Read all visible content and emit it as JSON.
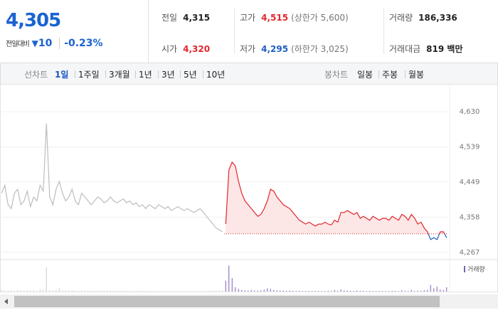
{
  "quote": {
    "price": "4,305",
    "change_label": "전일대비",
    "change": "10",
    "change_rate": "-0.23%"
  },
  "info": [
    [
      {
        "label": "전일",
        "value": "4,315"
      },
      {
        "label": "고가",
        "value": "4,515",
        "note": "(상한가 5,600)"
      },
      {
        "label": "거래량",
        "value": "186,336"
      }
    ],
    [
      {
        "label": "시가",
        "value": "4,320"
      },
      {
        "label": "저가",
        "value": "4,295",
        "note": "(하한가 3,025)"
      },
      {
        "label": "거래대금",
        "value": "819 백만"
      }
    ]
  ],
  "tabs": {
    "line_label": "선차트",
    "line": [
      "1일",
      "1주일",
      "3개월",
      "1년",
      "3년",
      "5년",
      "10년"
    ],
    "candle_label": "봉차트",
    "candle": [
      "일봉",
      "주봉",
      "월봉"
    ]
  },
  "chart_data": [
    {
      "type": "line",
      "grid": true,
      "baseline": 4315,
      "ylim": [
        4254,
        4689
      ],
      "yticks": [
        {
          "value": 4630,
          "label": "4,630"
        },
        {
          "value": 4539,
          "label": "4,539"
        },
        {
          "value": 4449,
          "label": "4,449"
        },
        {
          "value": 4358,
          "label": "4,358"
        },
        {
          "value": 4267,
          "label": "4,267"
        }
      ],
      "series": [
        {
          "color": "#bdbdbd",
          "values": [
            4420,
            4440,
            4390,
            4380,
            4420,
            4430,
            4390,
            4400,
            4425,
            4385,
            4410,
            4400,
            4440,
            4425,
            4600,
            4410,
            4390,
            4430,
            4450,
            4420,
            4400,
            4410,
            4430,
            4400,
            4390,
            4420,
            4410,
            4400,
            4390,
            4400,
            4410,
            4405,
            4395,
            4400,
            4410,
            4400,
            4395,
            4400,
            4405,
            4395,
            4400,
            4390,
            4395,
            4385,
            4390,
            4380,
            4390,
            4385,
            4380,
            4390,
            4385,
            4380,
            4385,
            4375,
            4380,
            4385,
            4380,
            4375,
            4380,
            4375,
            4370,
            4375,
            4380,
            4370,
            4360,
            4350,
            4340,
            4330,
            4325,
            4320
          ]
        },
        {
          "color": "#e0262d",
          "color_below": "#1f5ec4",
          "fill": "#fde6e6",
          "values": [
            4340,
            4480,
            4500,
            4490,
            4450,
            4420,
            4400,
            4390,
            4380,
            4370,
            4360,
            4365,
            4380,
            4400,
            4430,
            4425,
            4410,
            4400,
            4390,
            4385,
            4380,
            4370,
            4360,
            4350,
            4345,
            4340,
            4345,
            4340,
            4335,
            4340,
            4340,
            4345,
            4340,
            4338,
            4350,
            4345,
            4370,
            4370,
            4375,
            4370,
            4365,
            4370,
            4355,
            4360,
            4355,
            4350,
            4360,
            4355,
            4350,
            4355,
            4355,
            4350,
            4360,
            4355,
            4350,
            4365,
            4360,
            4350,
            4365,
            4355,
            4340,
            4345,
            4330,
            4320,
            4300,
            4305,
            4300,
            4320,
            4320,
            4305
          ]
        }
      ]
    },
    {
      "type": "bar",
      "legend": "거래량",
      "ylim": [
        0,
        50000
      ],
      "series": [
        {
          "color": "#c8c8c8",
          "values": [
            3000,
            2000,
            1500,
            2500,
            1000,
            3000,
            2000,
            1500,
            2200,
            1800,
            2600,
            1200,
            4000,
            3500,
            45000,
            2500,
            1800,
            3000,
            6000,
            2000,
            1500,
            1800,
            2500,
            1200,
            1000,
            2200,
            1500,
            1300,
            1100,
            1600,
            2000,
            1400,
            1200,
            1500,
            1800,
            1300,
            1000,
            1400,
            1600,
            1200,
            1500,
            1000,
            1300,
            1100,
            1200,
            1000,
            1400,
            1100,
            900,
            1300,
            1000,
            900,
            1100,
            800,
            1000,
            1200,
            900,
            800,
            1000,
            900,
            800,
            900,
            1100,
            900,
            1000,
            1200,
            1500,
            1800,
            2000,
            2500
          ]
        },
        {
          "color": "#7a5fb0",
          "values": [
            20000,
            48000,
            25000,
            8000,
            5000,
            3000,
            2500,
            2000,
            3000,
            2000,
            1800,
            2000,
            3500,
            6000,
            5000,
            3000,
            2500,
            2000,
            1800,
            1500,
            2000,
            1500,
            1200,
            1500,
            1000,
            1200,
            1500,
            1000,
            1200,
            1300,
            1000,
            1200,
            1500,
            1000,
            3000,
            1500,
            4000,
            2000,
            1800,
            1500,
            1200,
            2000,
            1500,
            1200,
            1000,
            1500,
            1200,
            1000,
            1300,
            1000,
            1200,
            1000,
            1500,
            1200,
            1000,
            2500,
            1500,
            1000,
            3000,
            1200,
            2000,
            1500,
            2500,
            3000,
            12000,
            6000,
            9000,
            4000,
            3000,
            8000
          ]
        }
      ]
    }
  ]
}
